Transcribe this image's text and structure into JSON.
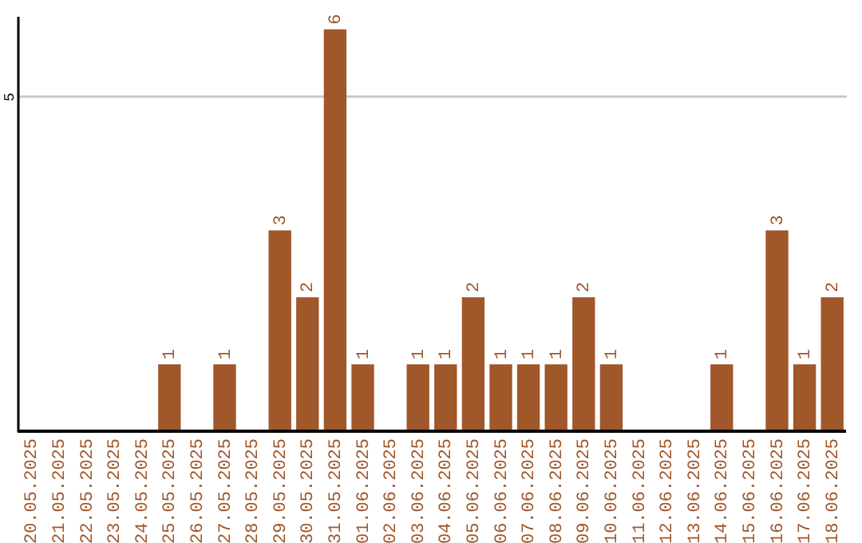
{
  "chart_data": {
    "type": "bar",
    "categories": [
      "20.05.2025",
      "21.05.2025",
      "22.05.2025",
      "23.05.2025",
      "24.05.2025",
      "25.05.2025",
      "26.05.2025",
      "27.05.2025",
      "28.05.2025",
      "29.05.2025",
      "30.05.2025",
      "31.05.2025",
      "01.06.2025",
      "02.06.2025",
      "03.06.2025",
      "04.06.2025",
      "05.06.2025",
      "06.06.2025",
      "07.06.2025",
      "08.06.2025",
      "09.06.2025",
      "10.06.2025",
      "11.06.2025",
      "12.06.2025",
      "13.06.2025",
      "14.06.2025",
      "15.06.2025",
      "16.06.2025",
      "17.06.2025",
      "18.06.2025"
    ],
    "values": [
      0,
      0,
      0,
      0,
      0,
      1,
      0,
      1,
      0,
      3,
      2,
      6,
      1,
      0,
      1,
      1,
      2,
      1,
      1,
      1,
      2,
      1,
      0,
      0,
      0,
      1,
      0,
      3,
      1,
      2
    ],
    "value_labels": [
      null,
      null,
      null,
      null,
      null,
      "1",
      null,
      "1",
      null,
      "3",
      "2",
      "6",
      "1",
      null,
      "1",
      "1",
      "2",
      "1",
      "1",
      "1",
      "2",
      "1",
      null,
      null,
      null,
      "1",
      null,
      "3",
      "1",
      "2"
    ],
    "color": "#a0572a",
    "ylim": [
      0,
      6.2
    ],
    "yticks": [
      5
    ],
    "grid": "y"
  }
}
